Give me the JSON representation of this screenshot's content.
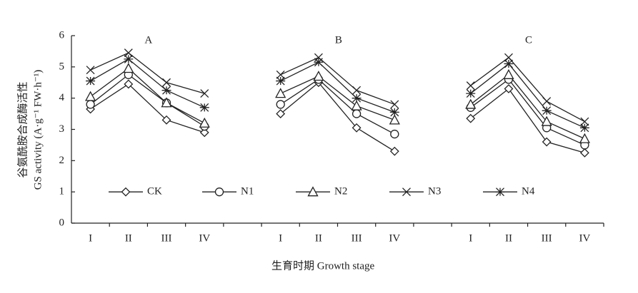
{
  "chart_data": {
    "type": "line",
    "ylabel": [
      "谷氨酰胺合成酶活性",
      "GS activity (A·g⁻¹ FW·h⁻¹)"
    ],
    "xlabel": "生育时期 Growth stage",
    "annotations": [
      "A",
      "B",
      "C"
    ],
    "categories": [
      "I",
      "II",
      "III",
      "IV",
      null,
      "I",
      "II",
      "III",
      "IV",
      null,
      "I",
      "II",
      "III",
      "IV"
    ],
    "ylim": [
      0,
      6
    ],
    "yticks": [
      0,
      1,
      2,
      3,
      4,
      5,
      6
    ],
    "series": [
      {
        "name": "CK",
        "color": "#222222",
        "marker": "diamond",
        "values": [
          3.65,
          4.45,
          3.3,
          2.9,
          null,
          3.5,
          4.5,
          3.05,
          2.3,
          null,
          3.35,
          4.3,
          2.6,
          2.25
        ]
      },
      {
        "name": "N1",
        "color": "#222222",
        "marker": "circle",
        "values": [
          3.8,
          4.75,
          3.85,
          3.1,
          null,
          3.8,
          4.6,
          3.5,
          2.85,
          null,
          3.7,
          4.6,
          3.05,
          2.5
        ]
      },
      {
        "name": "N2",
        "color": "#222222",
        "marker": "triangle",
        "values": [
          4.05,
          4.95,
          3.85,
          3.2,
          null,
          4.15,
          4.7,
          3.75,
          3.3,
          null,
          3.8,
          4.75,
          3.25,
          2.7
        ]
      },
      {
        "name": "N3",
        "color": "#222222",
        "marker": "x",
        "values": [
          4.9,
          5.45,
          4.5,
          4.15,
          null,
          4.75,
          5.3,
          4.25,
          3.8,
          null,
          4.4,
          5.3,
          3.9,
          3.25
        ]
      },
      {
        "name": "N4",
        "color": "#222222",
        "marker": "star",
        "values": [
          4.55,
          5.25,
          4.25,
          3.7,
          null,
          4.55,
          5.15,
          4.0,
          3.55,
          null,
          4.15,
          5.1,
          3.6,
          3.05
        ]
      }
    ]
  }
}
